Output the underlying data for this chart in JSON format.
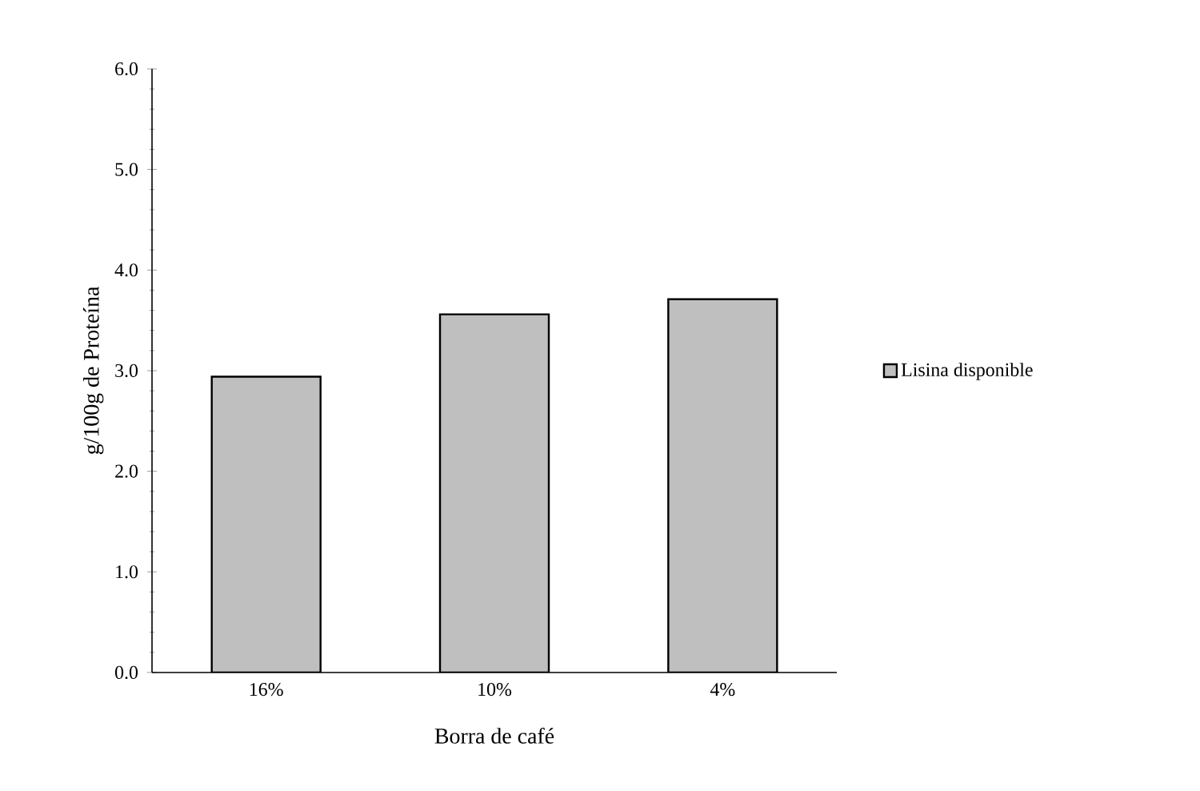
{
  "chart_data": {
    "type": "bar",
    "xlabel": "Borra de café",
    "ylabel": "g/100g de Proteína",
    "categories": [
      "16%",
      "10%",
      "4%"
    ],
    "series": [
      {
        "name": "Lisina disponible",
        "color": "#bfbfbf",
        "values": [
          2.94,
          3.56,
          3.71
        ]
      }
    ],
    "ylim": [
      0,
      6
    ],
    "yticks": [
      {
        "value": 0,
        "label": "0.0"
      },
      {
        "value": 1,
        "label": "1.0"
      },
      {
        "value": 2,
        "label": "2.0"
      },
      {
        "value": 3,
        "label": "3.0"
      },
      {
        "value": 4,
        "label": "4.0"
      },
      {
        "value": 5,
        "label": "5.0"
      },
      {
        "value": 6,
        "label": "6.0"
      }
    ],
    "grid": false,
    "legend": "right"
  }
}
